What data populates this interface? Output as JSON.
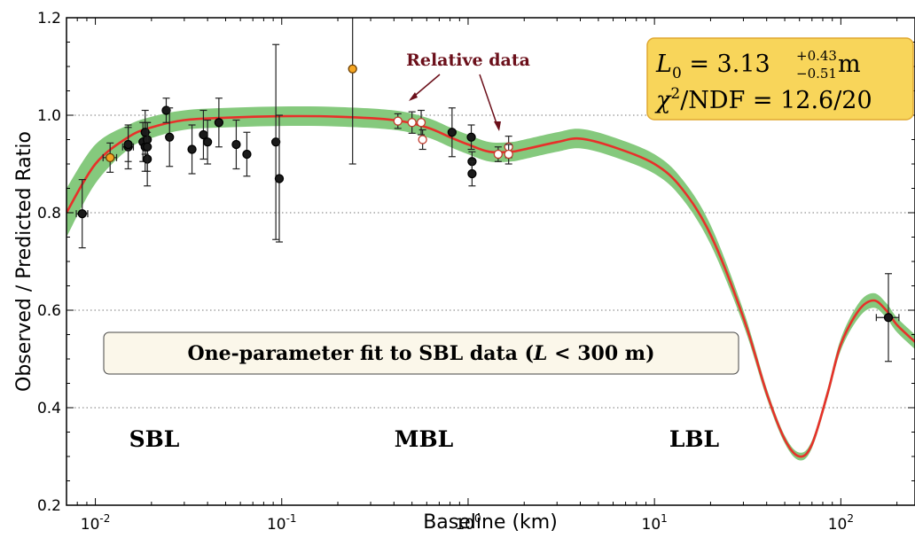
{
  "chart_data": {
    "type": "scatter",
    "title": "",
    "xlabel": "Baseline (km)",
    "ylabel": "Observed / Predicted Ratio",
    "x_scale": "log",
    "xlim": [
      0.007,
      250
    ],
    "ylim": [
      0.2,
      1.2
    ],
    "grid": "horizontal dotted",
    "x_ticks": [
      {
        "value": 0.01,
        "base": "10",
        "exp": "-2"
      },
      {
        "value": 0.1,
        "base": "10",
        "exp": "-1"
      },
      {
        "value": 1,
        "base": "10",
        "exp": "0"
      },
      {
        "value": 10,
        "base": "10",
        "exp": "1"
      },
      {
        "value": 100,
        "base": "10",
        "exp": "2"
      }
    ],
    "y_ticks": [
      {
        "value": 0.2,
        "label": "0.2"
      },
      {
        "value": 0.4,
        "label": "0.4"
      },
      {
        "value": 0.6,
        "label": "0.6"
      },
      {
        "value": 0.8,
        "label": "0.8"
      },
      {
        "value": 1.0,
        "label": "1.0"
      },
      {
        "value": 1.2,
        "label": "1.2"
      }
    ],
    "region_labels": [
      "SBL",
      "MBL",
      "LBL"
    ],
    "fit_box_label": "One-parameter fit to SBL data (L < 300 m)",
    "result_box": {
      "line1": "L0 = 3.13 +0.43 -0.51 m",
      "line2": "χ2/NDF = 12.6/20"
    },
    "annotation": "Relative data",
    "colors": {
      "fit_curve": "#e8302a",
      "band": "#85c97d",
      "absolute_points": "#1a1a1a",
      "orange_points": "#f5a623",
      "relative_points_fill": "#ffffff",
      "relative_points_edge": "#c0392b",
      "annotation": "#6b0f1a",
      "result_box": "#f8d55a",
      "fit_box": "#fbf7ea"
    },
    "fit_curve": {
      "x": [
        0.007,
        0.01,
        0.015,
        0.02,
        0.03,
        0.05,
        0.1,
        0.2,
        0.4,
        0.6,
        0.8,
        1.0,
        1.3,
        1.7,
        2.0,
        3.0,
        4.0,
        6.0,
        10,
        14,
        20,
        30,
        40,
        50,
        60,
        70,
        85,
        100,
        125,
        150,
        175,
        200,
        250
      ],
      "y": [
        0.8,
        0.9,
        0.955,
        0.975,
        0.99,
        0.995,
        0.998,
        0.997,
        0.99,
        0.975,
        0.955,
        0.94,
        0.925,
        0.925,
        0.93,
        0.945,
        0.952,
        0.935,
        0.9,
        0.85,
        0.755,
        0.585,
        0.43,
        0.335,
        0.3,
        0.325,
        0.43,
        0.53,
        0.6,
        0.62,
        0.6,
        0.57,
        0.535
      ]
    },
    "band_halfwidth": [
      0.05,
      0.04,
      0.025,
      0.022,
      0.02,
      0.02,
      0.02,
      0.02,
      0.02,
      0.02,
      0.02,
      0.02,
      0.02,
      0.02,
      0.02,
      0.02,
      0.02,
      0.02,
      0.02,
      0.02,
      0.02,
      0.015,
      0.01,
      0.008,
      0.008,
      0.008,
      0.01,
      0.012,
      0.015,
      0.015,
      0.015,
      0.015,
      0.015
    ],
    "series": [
      {
        "name": "",
        "style": "filled-black",
        "points": [
          {
            "x": 0.0085,
            "y": 0.798,
            "yerr": 0.07,
            "xerr": 0.0006
          },
          {
            "x": 0.015,
            "y": 0.935,
            "yerr": 0.045,
            "xerr": 0.001
          },
          {
            "x": 0.015,
            "y": 0.94,
            "yerr": 0.035
          },
          {
            "x": 0.018,
            "y": 0.945,
            "yerr": 0.04
          },
          {
            "x": 0.0185,
            "y": 0.935,
            "yerr": 0.05
          },
          {
            "x": 0.019,
            "y": 0.95,
            "yerr": 0.035
          },
          {
            "x": 0.019,
            "y": 0.91,
            "yerr": 0.055
          },
          {
            "x": 0.0185,
            "y": 0.965,
            "yerr": 0.045
          },
          {
            "x": 0.019,
            "y": 0.935,
            "yerr": 0.05
          },
          {
            "x": 0.024,
            "y": 1.01,
            "yerr": 0.025
          },
          {
            "x": 0.025,
            "y": 0.955,
            "yerr": 0.06
          },
          {
            "x": 0.033,
            "y": 0.93,
            "yerr": 0.05
          },
          {
            "x": 0.038,
            "y": 0.96,
            "yerr": 0.05
          },
          {
            "x": 0.04,
            "y": 0.945,
            "yerr": 0.045
          },
          {
            "x": 0.046,
            "y": 0.985,
            "yerr": 0.05
          },
          {
            "x": 0.057,
            "y": 0.94,
            "yerr": 0.05
          },
          {
            "x": 0.065,
            "y": 0.92,
            "yerr": 0.045
          },
          {
            "x": 0.093,
            "y": 0.945,
            "yerr": 0.2
          },
          {
            "x": 0.097,
            "y": 0.87,
            "yerr": 0.13
          },
          {
            "x": 0.82,
            "y": 0.965,
            "yerr": 0.05
          },
          {
            "x": 1.04,
            "y": 0.955,
            "yerr": 0.025
          },
          {
            "x": 1.05,
            "y": 0.905,
            "yerr": 0.02
          },
          {
            "x": 1.05,
            "y": 0.88,
            "yerr": 0.025
          },
          {
            "x": 180,
            "y": 0.585,
            "yerr": 0.09,
            "xerr": 25
          }
        ]
      },
      {
        "name": "",
        "style": "orange",
        "points": [
          {
            "x": 0.012,
            "y": 0.913,
            "yerr": 0.03,
            "xerr": 0.001
          },
          {
            "x": 0.24,
            "y": 1.095,
            "yerr": 0.195
          }
        ]
      },
      {
        "name": "Relative data",
        "style": "open-red",
        "points": [
          {
            "x": 0.42,
            "y": 0.988,
            "yerr": 0.015
          },
          {
            "x": 0.5,
            "y": 0.985,
            "yerr": 0.022
          },
          {
            "x": 0.56,
            "y": 0.985,
            "yerr": 0.025
          },
          {
            "x": 0.57,
            "y": 0.95,
            "yerr": 0.02
          },
          {
            "x": 1.45,
            "y": 0.92,
            "yerr": 0.015
          },
          {
            "x": 1.65,
            "y": 0.935,
            "yerr": 0.022
          },
          {
            "x": 1.65,
            "y": 0.92,
            "yerr": 0.02
          }
        ]
      }
    ]
  }
}
